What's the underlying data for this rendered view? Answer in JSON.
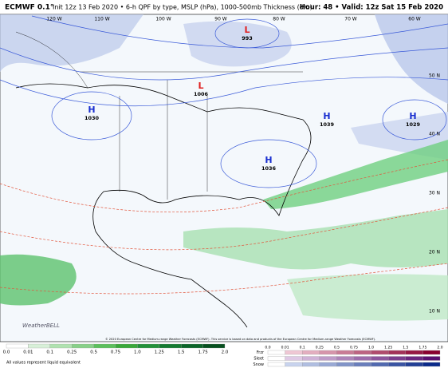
{
  "header": {
    "model": "ECMWF 0.1°",
    "description": "Init 12z 13 Feb 2020 • 6-h QPF by type, MSLP (hPa), 1000-500mb Thickness (dm)",
    "valid": "Hour: 48 • Valid: 12z Sat 15 Feb 2020"
  },
  "map": {
    "centers": [
      {
        "type": "L",
        "value": "993"
      },
      {
        "type": "L",
        "value": "1006"
      },
      {
        "type": "H",
        "value": "1030"
      },
      {
        "type": "H",
        "value": "1039"
      },
      {
        "type": "H",
        "value": "1029"
      },
      {
        "type": "H",
        "value": "1036"
      }
    ],
    "longitudes": [
      "120 W",
      "110 W",
      "100 W",
      "90 W",
      "80 W",
      "70 W",
      "60 W"
    ],
    "latitudes": [
      "50 N",
      "40 N",
      "30 N",
      "20 N",
      "10 N"
    ],
    "logo": "WeatherBELL",
    "credit": "© 2020 European Centre for Medium-range Weather Forecasts (ECMWF). This service is based on data and products of the European Centre for Medium-range Weather Forecasts (ECMWF)."
  },
  "legend": {
    "rain_ticks": [
      "0.0",
      "0.01",
      "0.1",
      "0.25",
      "0.5",
      "0.75",
      "1.0",
      "1.25",
      "1.5",
      "1.75",
      "2.0"
    ],
    "note": "All values represent liquid equivalent",
    "precip_types": [
      "Frzr",
      "Sleet",
      "Snow"
    ],
    "type_ticks": [
      "0.0",
      "0.01",
      "0.1",
      "0.25",
      "0.5",
      "0.75",
      "1.0",
      "1.25",
      "1.5",
      "1.75",
      "2.0"
    ]
  }
}
